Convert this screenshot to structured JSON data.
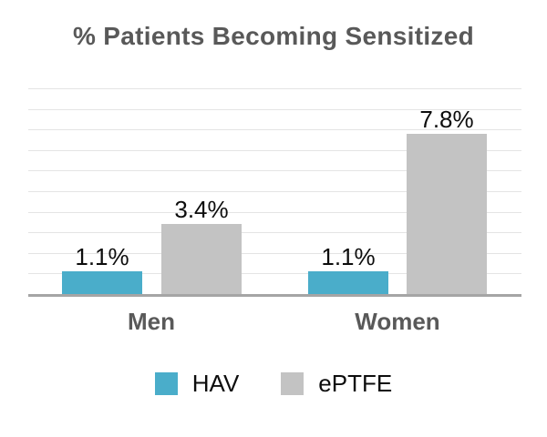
{
  "chart_data": {
    "type": "bar",
    "title": "% Patients Becoming Sensitized",
    "categories": [
      "Men",
      "Women"
    ],
    "series": [
      {
        "name": "HAV",
        "color": "#4aadca",
        "values": [
          1.1,
          1.1
        ],
        "labels": [
          "1.1%",
          "1.1%"
        ]
      },
      {
        "name": "ePTFE",
        "color": "#c3c3c3",
        "values": [
          3.4,
          7.8
        ],
        "labels": [
          "3.4%",
          "7.8%"
        ]
      }
    ],
    "xlabel": "",
    "ylabel": "",
    "ylim": [
      0,
      10.35
    ],
    "gridline_step_percent": 1,
    "gridline_count": 10,
    "y_tick_labels_visible": false,
    "legend_position": "bottom",
    "colors": {
      "title_text": "#595959",
      "category_text": "#595959",
      "data_label_text": "#0d0d0d",
      "axis_line": "#a5a5a5",
      "gridline": "#e4e4e4",
      "background": "#ffffff"
    }
  }
}
